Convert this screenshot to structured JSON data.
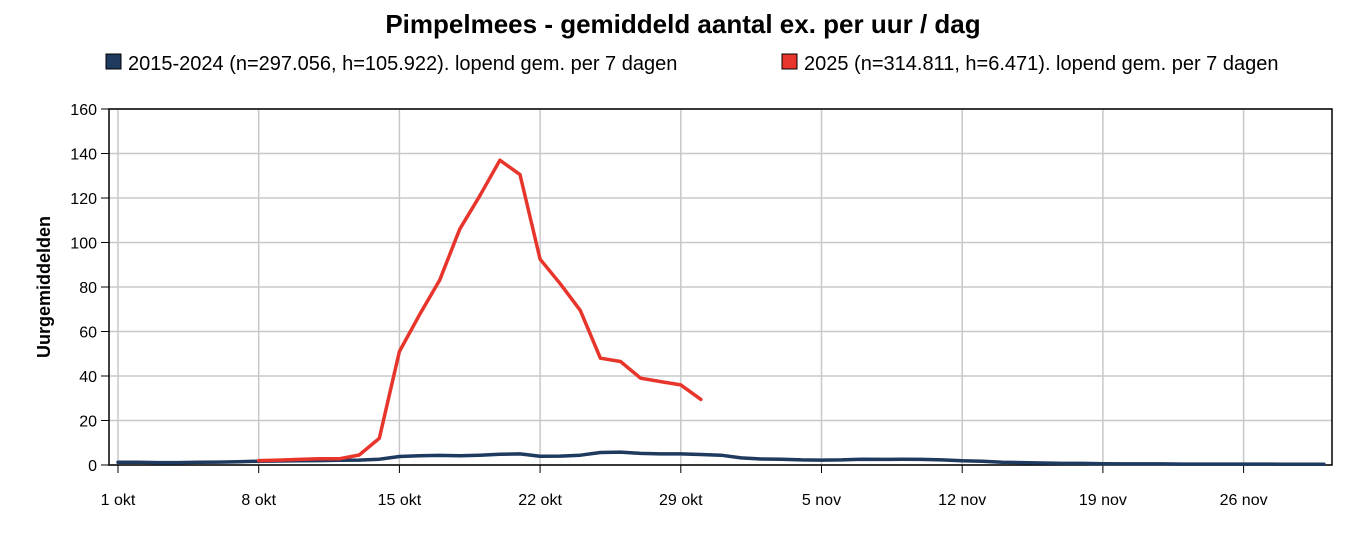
{
  "chart_data": {
    "type": "line",
    "title": "Pimpelmees - gemiddeld aantal ex. per uur / dag",
    "xlabel": "",
    "ylabel": "Uurgemiddelden",
    "ylim": [
      0,
      160
    ],
    "yticks": [
      0,
      20,
      40,
      60,
      80,
      100,
      120,
      140,
      160
    ],
    "xlim": [
      "2025-10-01",
      "2025-11-30"
    ],
    "xticks": [
      {
        "date": "2025-10-01",
        "label": "1 okt"
      },
      {
        "date": "2025-10-08",
        "label": "8 okt"
      },
      {
        "date": "2025-10-15",
        "label": "15 okt"
      },
      {
        "date": "2025-10-22",
        "label": "22 okt"
      },
      {
        "date": "2025-10-29",
        "label": "29 okt"
      },
      {
        "date": "2025-11-05",
        "label": "5 nov"
      },
      {
        "date": "2025-11-12",
        "label": "12 nov"
      },
      {
        "date": "2025-11-19",
        "label": "19 nov"
      },
      {
        "date": "2025-11-26",
        "label": "26 nov"
      }
    ],
    "grid": true,
    "legend_position": "top",
    "series": [
      {
        "name": "2015-2024 (n=297.056, h=105.922). lopend gem. per 7 dagen",
        "color": "#1f3a5f",
        "points": [
          [
            "2025-10-01",
            1.2
          ],
          [
            "2025-10-02",
            1.2
          ],
          [
            "2025-10-03",
            1.1
          ],
          [
            "2025-10-04",
            1.1
          ],
          [
            "2025-10-05",
            1.2
          ],
          [
            "2025-10-06",
            1.3
          ],
          [
            "2025-10-07",
            1.5
          ],
          [
            "2025-10-08",
            1.7
          ],
          [
            "2025-10-09",
            1.8
          ],
          [
            "2025-10-10",
            1.9
          ],
          [
            "2025-10-11",
            2.0
          ],
          [
            "2025-10-12",
            2.1
          ],
          [
            "2025-10-13",
            2.2
          ],
          [
            "2025-10-14",
            2.6
          ],
          [
            "2025-10-15",
            3.8
          ],
          [
            "2025-10-16",
            4.2
          ],
          [
            "2025-10-17",
            4.3
          ],
          [
            "2025-10-18",
            4.2
          ],
          [
            "2025-10-19",
            4.4
          ],
          [
            "2025-10-20",
            4.8
          ],
          [
            "2025-10-21",
            5.0
          ],
          [
            "2025-10-22",
            3.9
          ],
          [
            "2025-10-23",
            4.0
          ],
          [
            "2025-10-24",
            4.4
          ],
          [
            "2025-10-25",
            5.6
          ],
          [
            "2025-10-26",
            5.8
          ],
          [
            "2025-10-27",
            5.2
          ],
          [
            "2025-10-28",
            5.0
          ],
          [
            "2025-10-29",
            5.0
          ],
          [
            "2025-10-30",
            4.7
          ],
          [
            "2025-10-31",
            4.4
          ],
          [
            "2025-11-01",
            3.2
          ],
          [
            "2025-11-02",
            2.7
          ],
          [
            "2025-11-03",
            2.6
          ],
          [
            "2025-11-04",
            2.3
          ],
          [
            "2025-11-05",
            2.2
          ],
          [
            "2025-11-06",
            2.3
          ],
          [
            "2025-11-07",
            2.6
          ],
          [
            "2025-11-08",
            2.5
          ],
          [
            "2025-11-09",
            2.6
          ],
          [
            "2025-11-10",
            2.5
          ],
          [
            "2025-11-11",
            2.3
          ],
          [
            "2025-11-12",
            1.9
          ],
          [
            "2025-11-13",
            1.7
          ],
          [
            "2025-11-14",
            1.2
          ],
          [
            "2025-11-15",
            1.1
          ],
          [
            "2025-11-16",
            0.9
          ],
          [
            "2025-11-17",
            0.7
          ],
          [
            "2025-11-18",
            0.7
          ],
          [
            "2025-11-19",
            0.6
          ],
          [
            "2025-11-20",
            0.5
          ],
          [
            "2025-11-21",
            0.5
          ],
          [
            "2025-11-22",
            0.5
          ],
          [
            "2025-11-23",
            0.4
          ],
          [
            "2025-11-24",
            0.4
          ],
          [
            "2025-11-25",
            0.4
          ],
          [
            "2025-11-26",
            0.4
          ],
          [
            "2025-11-27",
            0.4
          ],
          [
            "2025-11-28",
            0.3
          ],
          [
            "2025-11-29",
            0.3
          ],
          [
            "2025-11-30",
            0.3
          ]
        ]
      },
      {
        "name": "2025 (n=314.811, h=6.471). lopend gem. per 7 dagen",
        "color": "#e8352c",
        "points": [
          [
            "2025-10-08",
            2.0
          ],
          [
            "2025-10-09",
            2.2
          ],
          [
            "2025-10-10",
            2.5
          ],
          [
            "2025-10-11",
            2.8
          ],
          [
            "2025-10-12",
            2.8
          ],
          [
            "2025-10-13",
            4.5
          ],
          [
            "2025-10-14",
            12.0
          ],
          [
            "2025-10-15",
            51.0
          ],
          [
            "2025-10-16",
            67.5
          ],
          [
            "2025-10-17",
            83.0
          ],
          [
            "2025-10-18",
            106.0
          ],
          [
            "2025-10-19",
            121.0
          ],
          [
            "2025-10-20",
            137.0
          ],
          [
            "2025-10-21",
            130.5
          ],
          [
            "2025-10-22",
            92.5
          ],
          [
            "2025-10-23",
            81.5
          ],
          [
            "2025-10-24",
            69.5
          ],
          [
            "2025-10-25",
            48.0
          ],
          [
            "2025-10-26",
            46.5
          ],
          [
            "2025-10-27",
            39.0
          ],
          [
            "2025-10-28",
            37.5
          ],
          [
            "2025-10-29",
            36.0
          ],
          [
            "2025-10-30",
            29.5
          ]
        ]
      }
    ]
  }
}
